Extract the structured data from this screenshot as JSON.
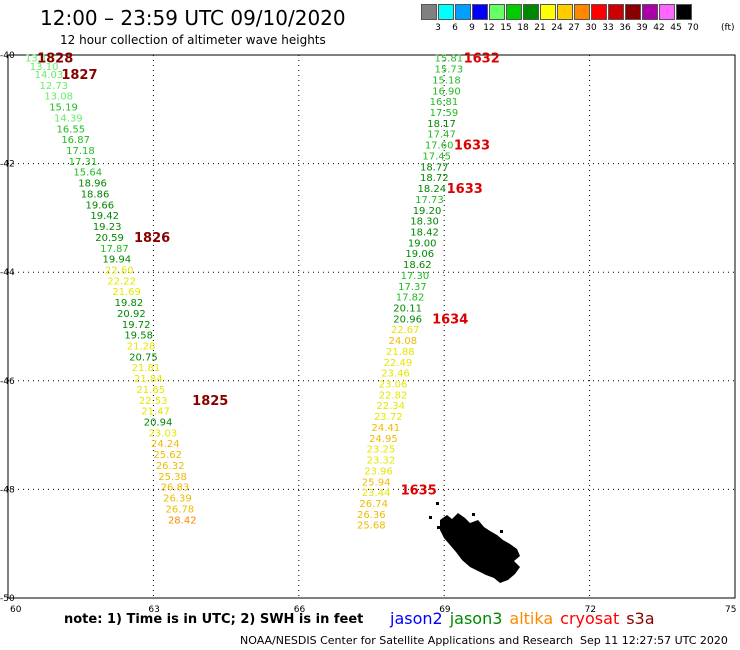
{
  "header": {
    "title": "12:00 – 23:59 UTC 09/10/2020",
    "subtitle": "12 hour collection of altimeter wave heights"
  },
  "colorbar": {
    "levels": [
      {
        "label": "3",
        "color": "#808080"
      },
      {
        "label": "6",
        "color": "#00ffff"
      },
      {
        "label": "9",
        "color": "#00a0ff"
      },
      {
        "label": "12",
        "color": "#0000ff"
      },
      {
        "label": "15",
        "color": "#66ff66"
      },
      {
        "label": "18",
        "color": "#00cc00"
      },
      {
        "label": "21",
        "color": "#008800"
      },
      {
        "label": "24",
        "color": "#ffff00"
      },
      {
        "label": "27",
        "color": "#ffcc00"
      },
      {
        "label": "30",
        "color": "#ff8800"
      },
      {
        "label": "33",
        "color": "#ff0000"
      },
      {
        "label": "36",
        "color": "#cc0000"
      },
      {
        "label": "39",
        "color": "#880000"
      },
      {
        "label": "42",
        "color": "#aa00aa"
      },
      {
        "label": "45",
        "color": "#ff66ff"
      },
      {
        "label": "70",
        "color": "#000000"
      }
    ],
    "unit": "(ft)"
  },
  "map": {
    "lon_range": [
      60,
      75
    ],
    "lat_range": [
      -50,
      -40
    ],
    "lon_ticks": [
      "60",
      "63",
      "66",
      "69",
      "72",
      "75"
    ],
    "lat_ticks": [
      "-40",
      "-42",
      "-44",
      "-46",
      "-48",
      "-50"
    ],
    "grid": true
  },
  "tracks": [
    {
      "name": "left-track",
      "points": [
        {
          "lat": -40.05,
          "lon": 60.35,
          "swh": "13.18"
        },
        {
          "lat": -40.2,
          "lon": 60.45,
          "swh": "13.10"
        },
        {
          "lat": -40.35,
          "lon": 60.55,
          "swh": "14.03"
        },
        {
          "lat": -40.55,
          "lon": 60.65,
          "swh": "12.73"
        },
        {
          "lat": -40.75,
          "lon": 60.75,
          "swh": "13.08"
        },
        {
          "lat": -40.95,
          "lon": 60.85,
          "swh": "15.19"
        },
        {
          "lat": -41.15,
          "lon": 60.95,
          "swh": "14.39"
        },
        {
          "lat": -41.35,
          "lon": 61.0,
          "swh": "16.55"
        },
        {
          "lat": -41.55,
          "lon": 61.1,
          "swh": "16.87"
        },
        {
          "lat": -41.75,
          "lon": 61.2,
          "swh": "17.18"
        },
        {
          "lat": -41.95,
          "lon": 61.25,
          "swh": "17.31"
        },
        {
          "lat": -42.15,
          "lon": 61.35,
          "swh": "15.64"
        },
        {
          "lat": -42.35,
          "lon": 61.45,
          "swh": "18.96"
        },
        {
          "lat": -42.55,
          "lon": 61.5,
          "swh": "18.86"
        },
        {
          "lat": -42.75,
          "lon": 61.6,
          "swh": "19.66"
        },
        {
          "lat": -42.95,
          "lon": 61.7,
          "swh": "19.42"
        },
        {
          "lat": -43.15,
          "lon": 61.75,
          "swh": "19.23"
        },
        {
          "lat": -43.35,
          "lon": 61.8,
          "swh": "20.59"
        },
        {
          "lat": -43.55,
          "lon": 61.9,
          "swh": "17.87"
        },
        {
          "lat": -43.75,
          "lon": 61.95,
          "swh": "19.94"
        },
        {
          "lat": -43.95,
          "lon": 62.0,
          "swh": "22.60"
        },
        {
          "lat": -44.15,
          "lon": 62.05,
          "swh": "22.22"
        },
        {
          "lat": -44.35,
          "lon": 62.15,
          "swh": "21.69"
        },
        {
          "lat": -44.55,
          "lon": 62.2,
          "swh": "19.82"
        },
        {
          "lat": -44.75,
          "lon": 62.25,
          "swh": "20.92"
        },
        {
          "lat": -44.95,
          "lon": 62.35,
          "swh": "19.72"
        },
        {
          "lat": -45.15,
          "lon": 62.4,
          "swh": "19.58"
        },
        {
          "lat": -45.35,
          "lon": 62.45,
          "swh": "21.28"
        },
        {
          "lat": -45.55,
          "lon": 62.5,
          "swh": "20.75"
        },
        {
          "lat": -45.75,
          "lon": 62.55,
          "swh": "21.81"
        },
        {
          "lat": -45.95,
          "lon": 62.6,
          "swh": "21.84"
        },
        {
          "lat": -46.15,
          "lon": 62.65,
          "swh": "21.65"
        },
        {
          "lat": -46.35,
          "lon": 62.7,
          "swh": "22.53"
        },
        {
          "lat": -46.55,
          "lon": 62.75,
          "swh": "21.47"
        },
        {
          "lat": -46.75,
          "lon": 62.8,
          "swh": "20.94"
        },
        {
          "lat": -46.95,
          "lon": 62.9,
          "swh": "23.03"
        },
        {
          "lat": -47.15,
          "lon": 62.95,
          "swh": "24.24"
        },
        {
          "lat": -47.35,
          "lon": 63.0,
          "swh": "25.62"
        },
        {
          "lat": -47.55,
          "lon": 63.05,
          "swh": "26.32"
        },
        {
          "lat": -47.75,
          "lon": 63.1,
          "swh": "25.38"
        },
        {
          "lat": -47.95,
          "lon": 63.15,
          "swh": "26.83"
        },
        {
          "lat": -48.15,
          "lon": 63.2,
          "swh": "26.39"
        },
        {
          "lat": -48.35,
          "lon": 63.25,
          "swh": "26.78"
        },
        {
          "lat": -48.55,
          "lon": 63.3,
          "swh": "28.42"
        }
      ]
    },
    {
      "name": "right-track",
      "points": [
        {
          "lat": -40.05,
          "lon": 68.8,
          "swh": "15.81"
        },
        {
          "lat": -40.25,
          "lon": 68.8,
          "swh": "15.73"
        },
        {
          "lat": -40.45,
          "lon": 68.75,
          "swh": "15.18"
        },
        {
          "lat": -40.65,
          "lon": 68.75,
          "swh": "16.90"
        },
        {
          "lat": -40.85,
          "lon": 68.7,
          "swh": "16.81"
        },
        {
          "lat": -41.05,
          "lon": 68.7,
          "swh": "17.59"
        },
        {
          "lat": -41.25,
          "lon": 68.65,
          "swh": "18.17"
        },
        {
          "lat": -41.45,
          "lon": 68.65,
          "swh": "17.47"
        },
        {
          "lat": -41.65,
          "lon": 68.6,
          "swh": "17.60"
        },
        {
          "lat": -41.85,
          "lon": 68.55,
          "swh": "17.45"
        },
        {
          "lat": -42.05,
          "lon": 68.5,
          "swh": "18.77"
        },
        {
          "lat": -42.25,
          "lon": 68.5,
          "swh": "18.72"
        },
        {
          "lat": -42.45,
          "lon": 68.45,
          "swh": "18.24"
        },
        {
          "lat": -42.65,
          "lon": 68.4,
          "swh": "17.73"
        },
        {
          "lat": -42.85,
          "lon": 68.35,
          "swh": "19.20"
        },
        {
          "lat": -43.05,
          "lon": 68.3,
          "swh": "18.30"
        },
        {
          "lat": -43.25,
          "lon": 68.3,
          "swh": "18.42"
        },
        {
          "lat": -43.45,
          "lon": 68.25,
          "swh": "19.00"
        },
        {
          "lat": -43.65,
          "lon": 68.2,
          "swh": "19.06"
        },
        {
          "lat": -43.85,
          "lon": 68.15,
          "swh": "18.62"
        },
        {
          "lat": -44.05,
          "lon": 68.1,
          "swh": "17.30"
        },
        {
          "lat": -44.25,
          "lon": 68.05,
          "swh": "17.37"
        },
        {
          "lat": -44.45,
          "lon": 68.0,
          "swh": "17.82"
        },
        {
          "lat": -44.65,
          "lon": 67.95,
          "swh": "20.11"
        },
        {
          "lat": -44.85,
          "lon": 67.95,
          "swh": "20.96"
        },
        {
          "lat": -45.05,
          "lon": 67.9,
          "swh": "22.67"
        },
        {
          "lat": -45.25,
          "lon": 67.85,
          "swh": "24.08"
        },
        {
          "lat": -45.45,
          "lon": 67.8,
          "swh": "21.88"
        },
        {
          "lat": -45.65,
          "lon": 67.75,
          "swh": "22.49"
        },
        {
          "lat": -45.85,
          "lon": 67.7,
          "swh": "23.46"
        },
        {
          "lat": -46.05,
          "lon": 67.65,
          "swh": "23.06"
        },
        {
          "lat": -46.25,
          "lon": 67.65,
          "swh": "22.82"
        },
        {
          "lat": -46.45,
          "lon": 67.6,
          "swh": "22.34"
        },
        {
          "lat": -46.65,
          "lon": 67.55,
          "swh": "23.72"
        },
        {
          "lat": -46.85,
          "lon": 67.5,
          "swh": "24.41"
        },
        {
          "lat": -47.05,
          "lon": 67.45,
          "swh": "24.95"
        },
        {
          "lat": -47.25,
          "lon": 67.4,
          "swh": "23.25"
        },
        {
          "lat": -47.45,
          "lon": 67.4,
          "swh": "23.32"
        },
        {
          "lat": -47.65,
          "lon": 67.35,
          "swh": "23.96"
        },
        {
          "lat": -47.85,
          "lon": 67.3,
          "swh": "25.94"
        },
        {
          "lat": -48.05,
          "lon": 67.3,
          "swh": "23.44"
        },
        {
          "lat": -48.25,
          "lon": 67.25,
          "swh": "26.74"
        },
        {
          "lat": -48.45,
          "lon": 67.2,
          "swh": "26.36"
        },
        {
          "lat": -48.65,
          "lon": 67.2,
          "swh": "25.68"
        }
      ]
    }
  ],
  "time_labels": [
    {
      "lat": -40.05,
      "lon": 60.6,
      "text": "1828",
      "color": "#880000"
    },
    {
      "lat": -40.35,
      "lon": 61.1,
      "text": "1827",
      "color": "#880000"
    },
    {
      "lat": -43.35,
      "lon": 62.6,
      "text": "1826",
      "color": "#880000"
    },
    {
      "lat": -46.35,
      "lon": 63.8,
      "text": "1825",
      "color": "#880000"
    },
    {
      "lat": -40.05,
      "lon": 69.4,
      "text": "1632",
      "color": "#dd0000"
    },
    {
      "lat": -41.65,
      "lon": 69.2,
      "text": "1633",
      "color": "#dd0000"
    },
    {
      "lat": -42.45,
      "lon": 69.05,
      "text": "1633",
      "color": "#dd0000"
    },
    {
      "lat": -44.85,
      "lon": 68.75,
      "text": "1634",
      "color": "#dd0000"
    },
    {
      "lat": -48.0,
      "lon": 68.1,
      "text": "1635",
      "color": "#dd0000"
    }
  ],
  "note": "note:  1)  Time is in UTC;  2)  SWH is in feet",
  "legend": [
    {
      "label": "jason2",
      "color": "#0000ff"
    },
    {
      "label": "jason3",
      "color": "#008800"
    },
    {
      "label": "altika",
      "color": "#ff8800"
    },
    {
      "label": "cryosat",
      "color": "#ff0000"
    },
    {
      "label": "s3a",
      "color": "#880000"
    }
  ],
  "footer": {
    "center": "NOAA/NESDIS Center for Satellite Applications and Research",
    "date": "Sep 11 12:27:57 UTC 2020"
  }
}
